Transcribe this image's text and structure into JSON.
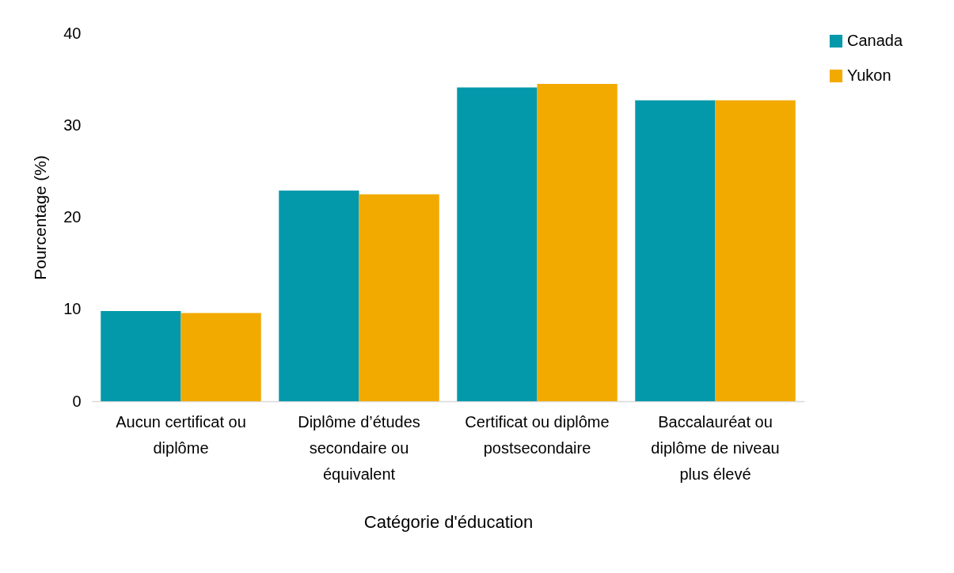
{
  "chart_data": {
    "type": "bar",
    "xlabel": "Catégorie d'éducation",
    "ylabel": "Pourcentage (%)",
    "categories": [
      "Aucun certificat ou diplôme",
      "Diplôme d’études secondaire ou équivalent",
      "Certificat ou diplôme postsecondaire",
      "Baccalauréat ou diplôme de niveau plus élevé"
    ],
    "series": [
      {
        "name": "Canada",
        "color": "#0399ab",
        "values": [
          9.8,
          22.9,
          34.1,
          32.7
        ]
      },
      {
        "name": "Yukon",
        "color": "#f2aa00",
        "values": [
          9.6,
          22.5,
          34.5,
          32.7
        ]
      }
    ],
    "ylim": [
      0,
      40
    ],
    "yticks": [
      0,
      10,
      20,
      30,
      40
    ],
    "grid": false,
    "legend": "right"
  }
}
